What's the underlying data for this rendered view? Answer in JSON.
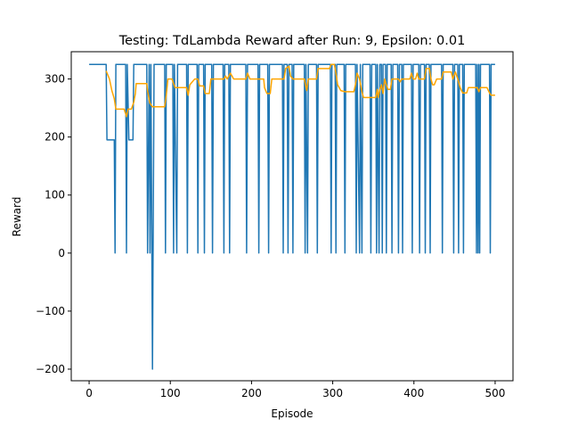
{
  "chart_data": {
    "type": "line",
    "title": "Testing: TdLambda Reward after Run: 9, Epsilon: 0.01",
    "xlabel": "Episode",
    "ylabel": "Reward",
    "xlim": [
      -22,
      522
    ],
    "ylim": [
      -220,
      347
    ],
    "xticks": [
      0,
      100,
      200,
      300,
      400,
      500
    ],
    "yticks": [
      -200,
      -100,
      0,
      100,
      200,
      300
    ],
    "grid": false,
    "series": [
      {
        "color": "#1f77b4",
        "points": [
          [
            0,
            325
          ],
          [
            21,
            325
          ],
          [
            22,
            195
          ],
          [
            31,
            195
          ],
          [
            32,
            0
          ],
          [
            33,
            325
          ],
          [
            45,
            325
          ],
          [
            46,
            0
          ],
          [
            47,
            325
          ],
          [
            49,
            195
          ],
          [
            54,
            195
          ],
          [
            55,
            325
          ],
          [
            71,
            325
          ],
          [
            72,
            0
          ],
          [
            74,
            325
          ],
          [
            75,
            0
          ],
          [
            76,
            325
          ],
          [
            78,
            -200
          ],
          [
            80,
            325
          ],
          [
            93,
            325
          ],
          [
            94,
            0
          ],
          [
            95,
            325
          ],
          [
            103,
            325
          ],
          [
            104,
            0
          ],
          [
            105,
            325
          ],
          [
            108,
            0
          ],
          [
            109,
            325
          ],
          [
            120,
            325
          ],
          [
            121,
            0
          ],
          [
            122,
            325
          ],
          [
            133,
            325
          ],
          [
            134,
            0
          ],
          [
            135,
            325
          ],
          [
            141,
            325
          ],
          [
            142,
            0
          ],
          [
            143,
            325
          ],
          [
            151,
            325
          ],
          [
            152,
            0
          ],
          [
            153,
            325
          ],
          [
            165,
            325
          ],
          [
            166,
            0
          ],
          [
            167,
            325
          ],
          [
            172,
            325
          ],
          [
            173,
            0
          ],
          [
            174,
            325
          ],
          [
            193,
            325
          ],
          [
            194,
            0
          ],
          [
            195,
            325
          ],
          [
            208,
            325
          ],
          [
            209,
            0
          ],
          [
            210,
            325
          ],
          [
            220,
            325
          ],
          [
            221,
            0
          ],
          [
            222,
            325
          ],
          [
            238,
            325
          ],
          [
            239,
            0
          ],
          [
            240,
            325
          ],
          [
            244,
            325
          ],
          [
            245,
            0
          ],
          [
            246,
            325
          ],
          [
            250,
            325
          ],
          [
            251,
            0
          ],
          [
            252,
            325
          ],
          [
            265,
            325
          ],
          [
            266,
            0
          ],
          [
            267,
            325
          ],
          [
            269,
            0
          ],
          [
            270,
            325
          ],
          [
            280,
            325
          ],
          [
            281,
            0
          ],
          [
            282,
            325
          ],
          [
            297,
            325
          ],
          [
            298,
            0
          ],
          [
            299,
            325
          ],
          [
            303,
            325
          ],
          [
            304,
            0
          ],
          [
            305,
            325
          ],
          [
            314,
            325
          ],
          [
            315,
            0
          ],
          [
            316,
            325
          ],
          [
            328,
            325
          ],
          [
            329,
            0
          ],
          [
            330,
            325
          ],
          [
            333,
            0
          ],
          [
            334,
            325
          ],
          [
            336,
            0
          ],
          [
            337,
            325
          ],
          [
            346,
            325
          ],
          [
            347,
            0
          ],
          [
            348,
            325
          ],
          [
            353,
            325
          ],
          [
            354,
            0
          ],
          [
            355,
            325
          ],
          [
            357,
            0
          ],
          [
            358,
            325
          ],
          [
            360,
            325
          ],
          [
            361,
            0
          ],
          [
            362,
            325
          ],
          [
            365,
            325
          ],
          [
            366,
            0
          ],
          [
            367,
            325
          ],
          [
            372,
            325
          ],
          [
            373,
            0
          ],
          [
            374,
            325
          ],
          [
            380,
            325
          ],
          [
            381,
            0
          ],
          [
            382,
            325
          ],
          [
            385,
            325
          ],
          [
            386,
            0
          ],
          [
            387,
            325
          ],
          [
            397,
            325
          ],
          [
            398,
            0
          ],
          [
            399,
            325
          ],
          [
            406,
            325
          ],
          [
            407,
            0
          ],
          [
            408,
            325
          ],
          [
            413,
            325
          ],
          [
            414,
            0
          ],
          [
            415,
            325
          ],
          [
            419,
            325
          ],
          [
            420,
            0
          ],
          [
            421,
            325
          ],
          [
            434,
            325
          ],
          [
            435,
            0
          ],
          [
            436,
            325
          ],
          [
            448,
            325
          ],
          [
            449,
            0
          ],
          [
            450,
            325
          ],
          [
            454,
            325
          ],
          [
            455,
            0
          ],
          [
            456,
            325
          ],
          [
            460,
            325
          ],
          [
            461,
            0
          ],
          [
            462,
            325
          ],
          [
            476,
            325
          ],
          [
            477,
            0
          ],
          [
            478,
            325
          ],
          [
            479,
            0
          ],
          [
            480,
            325
          ],
          [
            481,
            0
          ],
          [
            482,
            325
          ],
          [
            493,
            325
          ],
          [
            494,
            0
          ],
          [
            495,
            325
          ],
          [
            500,
            325
          ]
        ]
      },
      {
        "color": "#ffa500",
        "points": [
          [
            21,
            314
          ],
          [
            25,
            300
          ],
          [
            28,
            280
          ],
          [
            31,
            266
          ],
          [
            33,
            248
          ],
          [
            43,
            248
          ],
          [
            45,
            240
          ],
          [
            46,
            235
          ],
          [
            48,
            248
          ],
          [
            52,
            248
          ],
          [
            55,
            260
          ],
          [
            57,
            275
          ],
          [
            58,
            292
          ],
          [
            71,
            292
          ],
          [
            72,
            280
          ],
          [
            74,
            264
          ],
          [
            75,
            258
          ],
          [
            78,
            252
          ],
          [
            93,
            252
          ],
          [
            95,
            272
          ],
          [
            97,
            300
          ],
          [
            102,
            300
          ],
          [
            104,
            292
          ],
          [
            106,
            285
          ],
          [
            120,
            285
          ],
          [
            122,
            272
          ],
          [
            124,
            290
          ],
          [
            130,
            300
          ],
          [
            134,
            300
          ],
          [
            136,
            288
          ],
          [
            141,
            288
          ],
          [
            143,
            275
          ],
          [
            148,
            275
          ],
          [
            150,
            300
          ],
          [
            166,
            300
          ],
          [
            168,
            305
          ],
          [
            170,
            300
          ],
          [
            172,
            305
          ],
          [
            174,
            310
          ],
          [
            178,
            300
          ],
          [
            193,
            300
          ],
          [
            195,
            310
          ],
          [
            198,
            300
          ],
          [
            215,
            300
          ],
          [
            216,
            285
          ],
          [
            219,
            275
          ],
          [
            223,
            275
          ],
          [
            225,
            300
          ],
          [
            240,
            300
          ],
          [
            242,
            318
          ],
          [
            246,
            322
          ],
          [
            248,
            305
          ],
          [
            251,
            300
          ],
          [
            265,
            300
          ],
          [
            268,
            280
          ],
          [
            270,
            300
          ],
          [
            280,
            300
          ],
          [
            282,
            318
          ],
          [
            296,
            318
          ],
          [
            298,
            325
          ],
          [
            302,
            325
          ],
          [
            304,
            310
          ],
          [
            306,
            290
          ],
          [
            310,
            280
          ],
          [
            315,
            278
          ],
          [
            326,
            278
          ],
          [
            328,
            290
          ],
          [
            330,
            310
          ],
          [
            333,
            300
          ],
          [
            336,
            278
          ],
          [
            338,
            268
          ],
          [
            347,
            268
          ],
          [
            353,
            268
          ],
          [
            355,
            282
          ],
          [
            356,
            268
          ],
          [
            358,
            282
          ],
          [
            360,
            290
          ],
          [
            362,
            275
          ],
          [
            364,
            300
          ],
          [
            366,
            290
          ],
          [
            368,
            282
          ],
          [
            371,
            282
          ],
          [
            373,
            300
          ],
          [
            381,
            300
          ],
          [
            383,
            295
          ],
          [
            385,
            300
          ],
          [
            395,
            300
          ],
          [
            397,
            310
          ],
          [
            399,
            300
          ],
          [
            402,
            300
          ],
          [
            404,
            310
          ],
          [
            406,
            300
          ],
          [
            413,
            300
          ],
          [
            415,
            318
          ],
          [
            419,
            318
          ],
          [
            421,
            300
          ],
          [
            423,
            290
          ],
          [
            425,
            290
          ],
          [
            428,
            300
          ],
          [
            434,
            300
          ],
          [
            436,
            312
          ],
          [
            446,
            312
          ],
          [
            448,
            300
          ],
          [
            451,
            312
          ],
          [
            454,
            300
          ],
          [
            457,
            285
          ],
          [
            460,
            276
          ],
          [
            465,
            276
          ],
          [
            467,
            285
          ],
          [
            478,
            285
          ],
          [
            480,
            278
          ],
          [
            482,
            285
          ],
          [
            486,
            285
          ],
          [
            490,
            285
          ],
          [
            493,
            276
          ],
          [
            495,
            272
          ],
          [
            500,
            272
          ]
        ]
      }
    ]
  }
}
